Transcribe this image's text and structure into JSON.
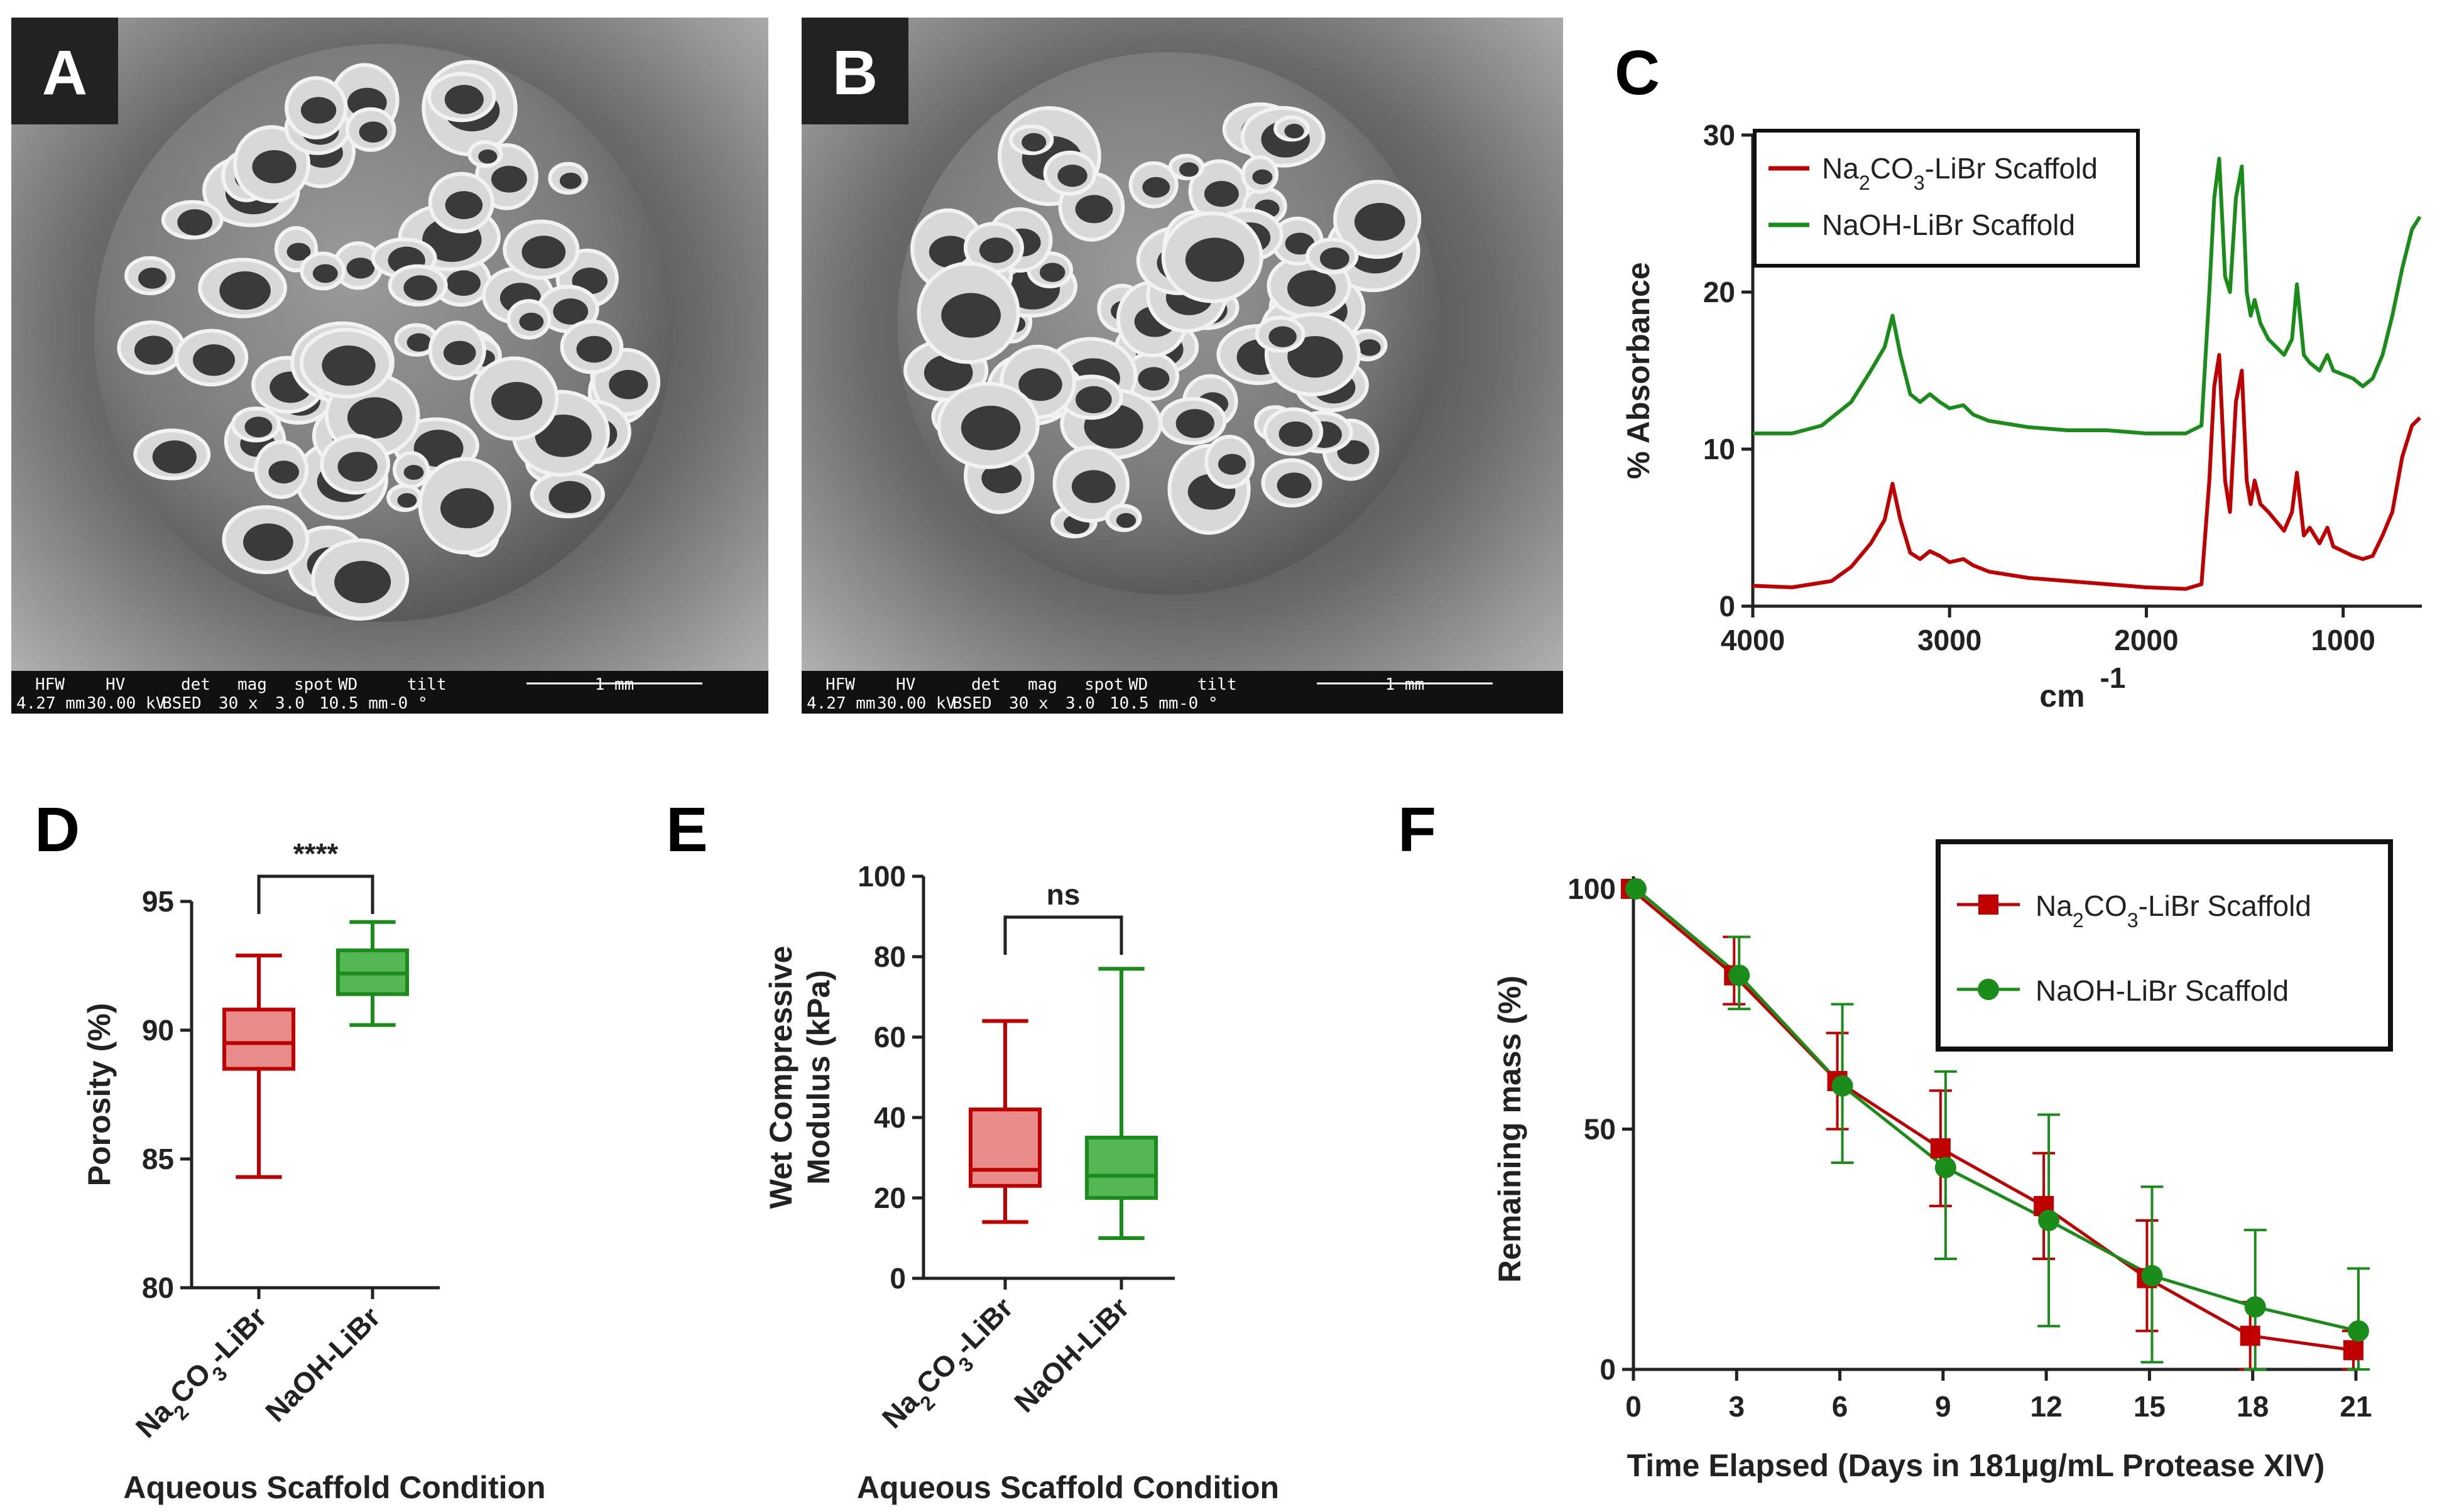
{
  "panels": {
    "A": {
      "letter": "A",
      "sem_bar": {
        "headers": [
          "HFW",
          "HV",
          "det",
          "mag",
          "spot",
          "WD",
          "tilt"
        ],
        "values": [
          "4.27 mm",
          "30.00 kV",
          "BSED",
          "30 x",
          "3.0",
          "10.5 mm",
          "-0 °"
        ],
        "scale": "1 mm"
      }
    },
    "B": {
      "letter": "B",
      "sem_bar": {
        "headers": [
          "HFW",
          "HV",
          "det",
          "mag",
          "spot",
          "WD",
          "tilt"
        ],
        "values": [
          "4.27 mm",
          "30.00 kV",
          "BSED",
          "30 x",
          "3.0",
          "10.5 mm",
          "-0 °"
        ],
        "scale": "1 mm"
      }
    }
  },
  "chart_data": [
    {
      "panel": "C",
      "type": "line",
      "xlabel_base": "cm",
      "xlabel_sup": "-1",
      "ylabel": "% Absorbance",
      "xlim": [
        4000,
        600
      ],
      "ylim": [
        0,
        30
      ],
      "x_ticks": [
        4000,
        3000,
        2000,
        1000
      ],
      "y_ticks": [
        0,
        10,
        20,
        30
      ],
      "legend_position": "top-left",
      "series": [
        {
          "name_parts": [
            "Na",
            "2",
            "CO",
            "3",
            "-LiBr Scaffold"
          ],
          "color": "#c00000",
          "points": [
            [
              4000,
              1.3
            ],
            [
              3800,
              1.2
            ],
            [
              3600,
              1.6
            ],
            [
              3500,
              2.5
            ],
            [
              3400,
              4
            ],
            [
              3330,
              5.5
            ],
            [
              3290,
              7.8
            ],
            [
              3250,
              5.5
            ],
            [
              3200,
              3.4
            ],
            [
              3150,
              3
            ],
            [
              3100,
              3.5
            ],
            [
              3050,
              3.2
            ],
            [
              3000,
              2.8
            ],
            [
              2930,
              3
            ],
            [
              2880,
              2.6
            ],
            [
              2800,
              2.2
            ],
            [
              2600,
              1.8
            ],
            [
              2400,
              1.6
            ],
            [
              2200,
              1.4
            ],
            [
              2000,
              1.2
            ],
            [
              1800,
              1.1
            ],
            [
              1720,
              1.4
            ],
            [
              1680,
              8
            ],
            [
              1655,
              14
            ],
            [
              1630,
              16
            ],
            [
              1600,
              8
            ],
            [
              1575,
              6
            ],
            [
              1545,
              13
            ],
            [
              1515,
              15
            ],
            [
              1490,
              8
            ],
            [
              1470,
              6.5
            ],
            [
              1450,
              8
            ],
            [
              1420,
              6.5
            ],
            [
              1380,
              6
            ],
            [
              1300,
              4.8
            ],
            [
              1260,
              6
            ],
            [
              1235,
              8.5
            ],
            [
              1200,
              4.5
            ],
            [
              1170,
              5
            ],
            [
              1120,
              4
            ],
            [
              1080,
              5
            ],
            [
              1050,
              3.8
            ],
            [
              950,
              3.2
            ],
            [
              900,
              3
            ],
            [
              850,
              3.2
            ],
            [
              800,
              4.5
            ],
            [
              750,
              6
            ],
            [
              700,
              9.5
            ],
            [
              650,
              11.5
            ],
            [
              610,
              12
            ]
          ]
        },
        {
          "name_parts": [
            "NaOH-LiBr Scaffold"
          ],
          "color": "#1a8c1a",
          "points": [
            [
              4000,
              11
            ],
            [
              3800,
              11
            ],
            [
              3650,
              11.5
            ],
            [
              3500,
              13
            ],
            [
              3400,
              15
            ],
            [
              3330,
              16.5
            ],
            [
              3290,
              18.5
            ],
            [
              3250,
              16
            ],
            [
              3200,
              13.5
            ],
            [
              3150,
              13
            ],
            [
              3100,
              13.5
            ],
            [
              3050,
              13
            ],
            [
              3000,
              12.6
            ],
            [
              2930,
              12.8
            ],
            [
              2880,
              12.2
            ],
            [
              2800,
              11.8
            ],
            [
              2600,
              11.4
            ],
            [
              2400,
              11.2
            ],
            [
              2200,
              11.2
            ],
            [
              2000,
              11
            ],
            [
              1800,
              11
            ],
            [
              1720,
              11.5
            ],
            [
              1680,
              20
            ],
            [
              1655,
              26
            ],
            [
              1630,
              28.5
            ],
            [
              1600,
              21
            ],
            [
              1575,
              20
            ],
            [
              1545,
              26
            ],
            [
              1515,
              28
            ],
            [
              1490,
              20
            ],
            [
              1470,
              18.5
            ],
            [
              1450,
              19.5
            ],
            [
              1420,
              18
            ],
            [
              1380,
              17
            ],
            [
              1300,
              16
            ],
            [
              1260,
              17
            ],
            [
              1235,
              20.5
            ],
            [
              1200,
              16
            ],
            [
              1170,
              15.5
            ],
            [
              1120,
              15
            ],
            [
              1080,
              16
            ],
            [
              1050,
              15
            ],
            [
              950,
              14.5
            ],
            [
              900,
              14
            ],
            [
              850,
              14.5
            ],
            [
              800,
              16
            ],
            [
              750,
              18.5
            ],
            [
              700,
              21.5
            ],
            [
              650,
              24
            ],
            [
              610,
              24.8
            ]
          ]
        }
      ]
    },
    {
      "panel": "D",
      "type": "box",
      "ylabel": "Porosity  (%)",
      "xlabel": "Aqueous Scaffold Condition",
      "ylim": [
        80,
        95
      ],
      "y_ticks": [
        80,
        85,
        90,
        95
      ],
      "significance": "****",
      "boxes": [
        {
          "label_parts": [
            "Na",
            "2",
            "CO",
            "3",
            "-LiBr"
          ],
          "min": 84.3,
          "q1": 88.5,
          "median": 89.5,
          "q3": 90.8,
          "max": 92.9,
          "color": "#c00000",
          "fill": "#e88b8b"
        },
        {
          "label_parts": [
            "NaOH-LiBr"
          ],
          "min": 90.2,
          "q1": 91.4,
          "median": 92.2,
          "q3": 93.1,
          "max": 94.2,
          "color": "#1a8c1a",
          "fill": "#55b655"
        }
      ]
    },
    {
      "panel": "E",
      "type": "box",
      "ylabel_lines": [
        "Wet Compressive",
        "Modulus (kPa)"
      ],
      "xlabel": "Aqueous Scaffold Condition",
      "ylim": [
        0,
        100
      ],
      "y_ticks": [
        0,
        20,
        40,
        60,
        80,
        100
      ],
      "significance": "ns",
      "boxes": [
        {
          "label_parts": [
            "Na",
            "2",
            "CO",
            "3",
            "-LiBr"
          ],
          "min": 14,
          "q1": 23,
          "median": 27,
          "q3": 42,
          "max": 64,
          "color": "#c00000",
          "fill": "#e88b8b"
        },
        {
          "label_parts": [
            "NaOH-LiBr"
          ],
          "min": 10,
          "q1": 20,
          "median": 25.5,
          "q3": 35,
          "max": 77,
          "color": "#1a8c1a",
          "fill": "#55b655"
        }
      ]
    },
    {
      "panel": "F",
      "type": "line",
      "xlabel": "Time Elapsed (Days in 181µg/mL Protease XIV)",
      "ylabel": "Remaining mass (%)",
      "xlim": [
        0,
        21
      ],
      "ylim": [
        0,
        100
      ],
      "x_ticks": [
        0,
        3,
        6,
        9,
        12,
        15,
        18,
        21
      ],
      "y_ticks": [
        0,
        50,
        100
      ],
      "legend_position": "top-right",
      "series": [
        {
          "name_parts": [
            "Na",
            "2",
            "CO",
            "3",
            "-LiBr Scaffold"
          ],
          "color": "#c00000",
          "marker": "square",
          "x": [
            0,
            3,
            6,
            9,
            12,
            15,
            18,
            21
          ],
          "y": [
            100,
            82,
            60,
            46,
            34,
            19,
            7,
            4
          ],
          "err_low": [
            0,
            6,
            10,
            12,
            11,
            11,
            7,
            4
          ],
          "err_high": [
            0,
            8,
            10,
            12,
            11,
            12,
            7,
            4
          ]
        },
        {
          "name_parts": [
            "NaOH-LiBr Scaffold"
          ],
          "color": "#1a8c1a",
          "marker": "circle",
          "x": [
            0,
            3,
            6,
            9,
            12,
            15,
            18,
            21
          ],
          "y": [
            100,
            82,
            59,
            42,
            31,
            19.5,
            13,
            8
          ],
          "err_low": [
            0,
            7,
            16,
            19,
            22,
            18,
            13,
            8
          ],
          "err_high": [
            0,
            8,
            17,
            20,
            22,
            18.5,
            16,
            13
          ]
        }
      ]
    }
  ]
}
